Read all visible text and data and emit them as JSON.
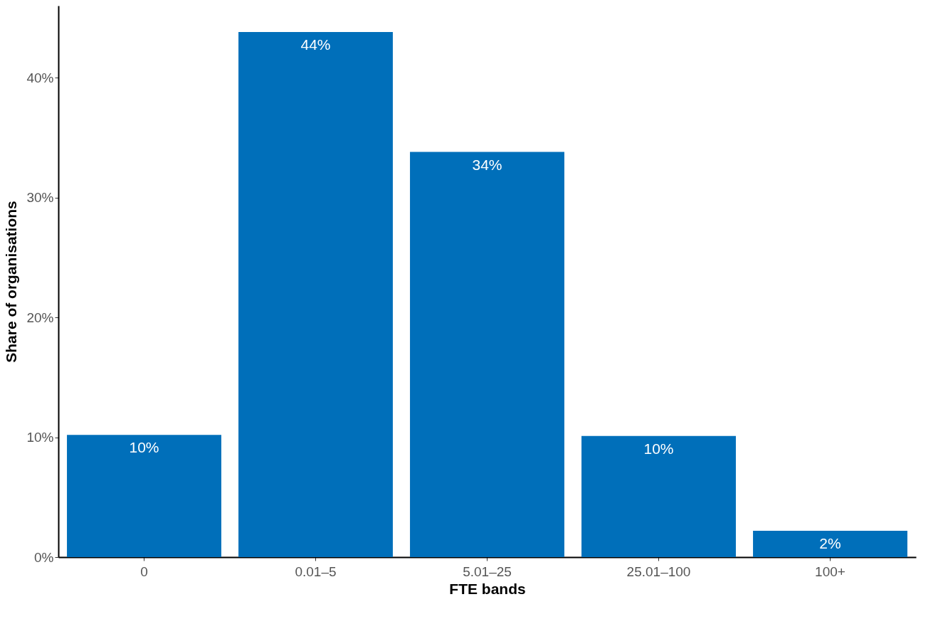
{
  "chart_data": {
    "type": "bar",
    "xlabel": "FTE bands",
    "ylabel": "Share of organisations",
    "categories": [
      "0",
      "0.01–5",
      "5.01–25",
      "25.01–100",
      "100+"
    ],
    "values": [
      10.2,
      43.8,
      33.8,
      10.1,
      2.2
    ],
    "value_labels": [
      "10%",
      "44%",
      "34%",
      "10%",
      "2%"
    ],
    "color": "#006fba",
    "ylim": [
      0,
      46
    ],
    "yticks": [
      {
        "value": 0,
        "label": "0%"
      },
      {
        "value": 10,
        "label": "10%"
      },
      {
        "value": 20,
        "label": "20%"
      },
      {
        "value": 30,
        "label": "30%"
      },
      {
        "value": 40,
        "label": "40%"
      }
    ],
    "grid": false
  }
}
